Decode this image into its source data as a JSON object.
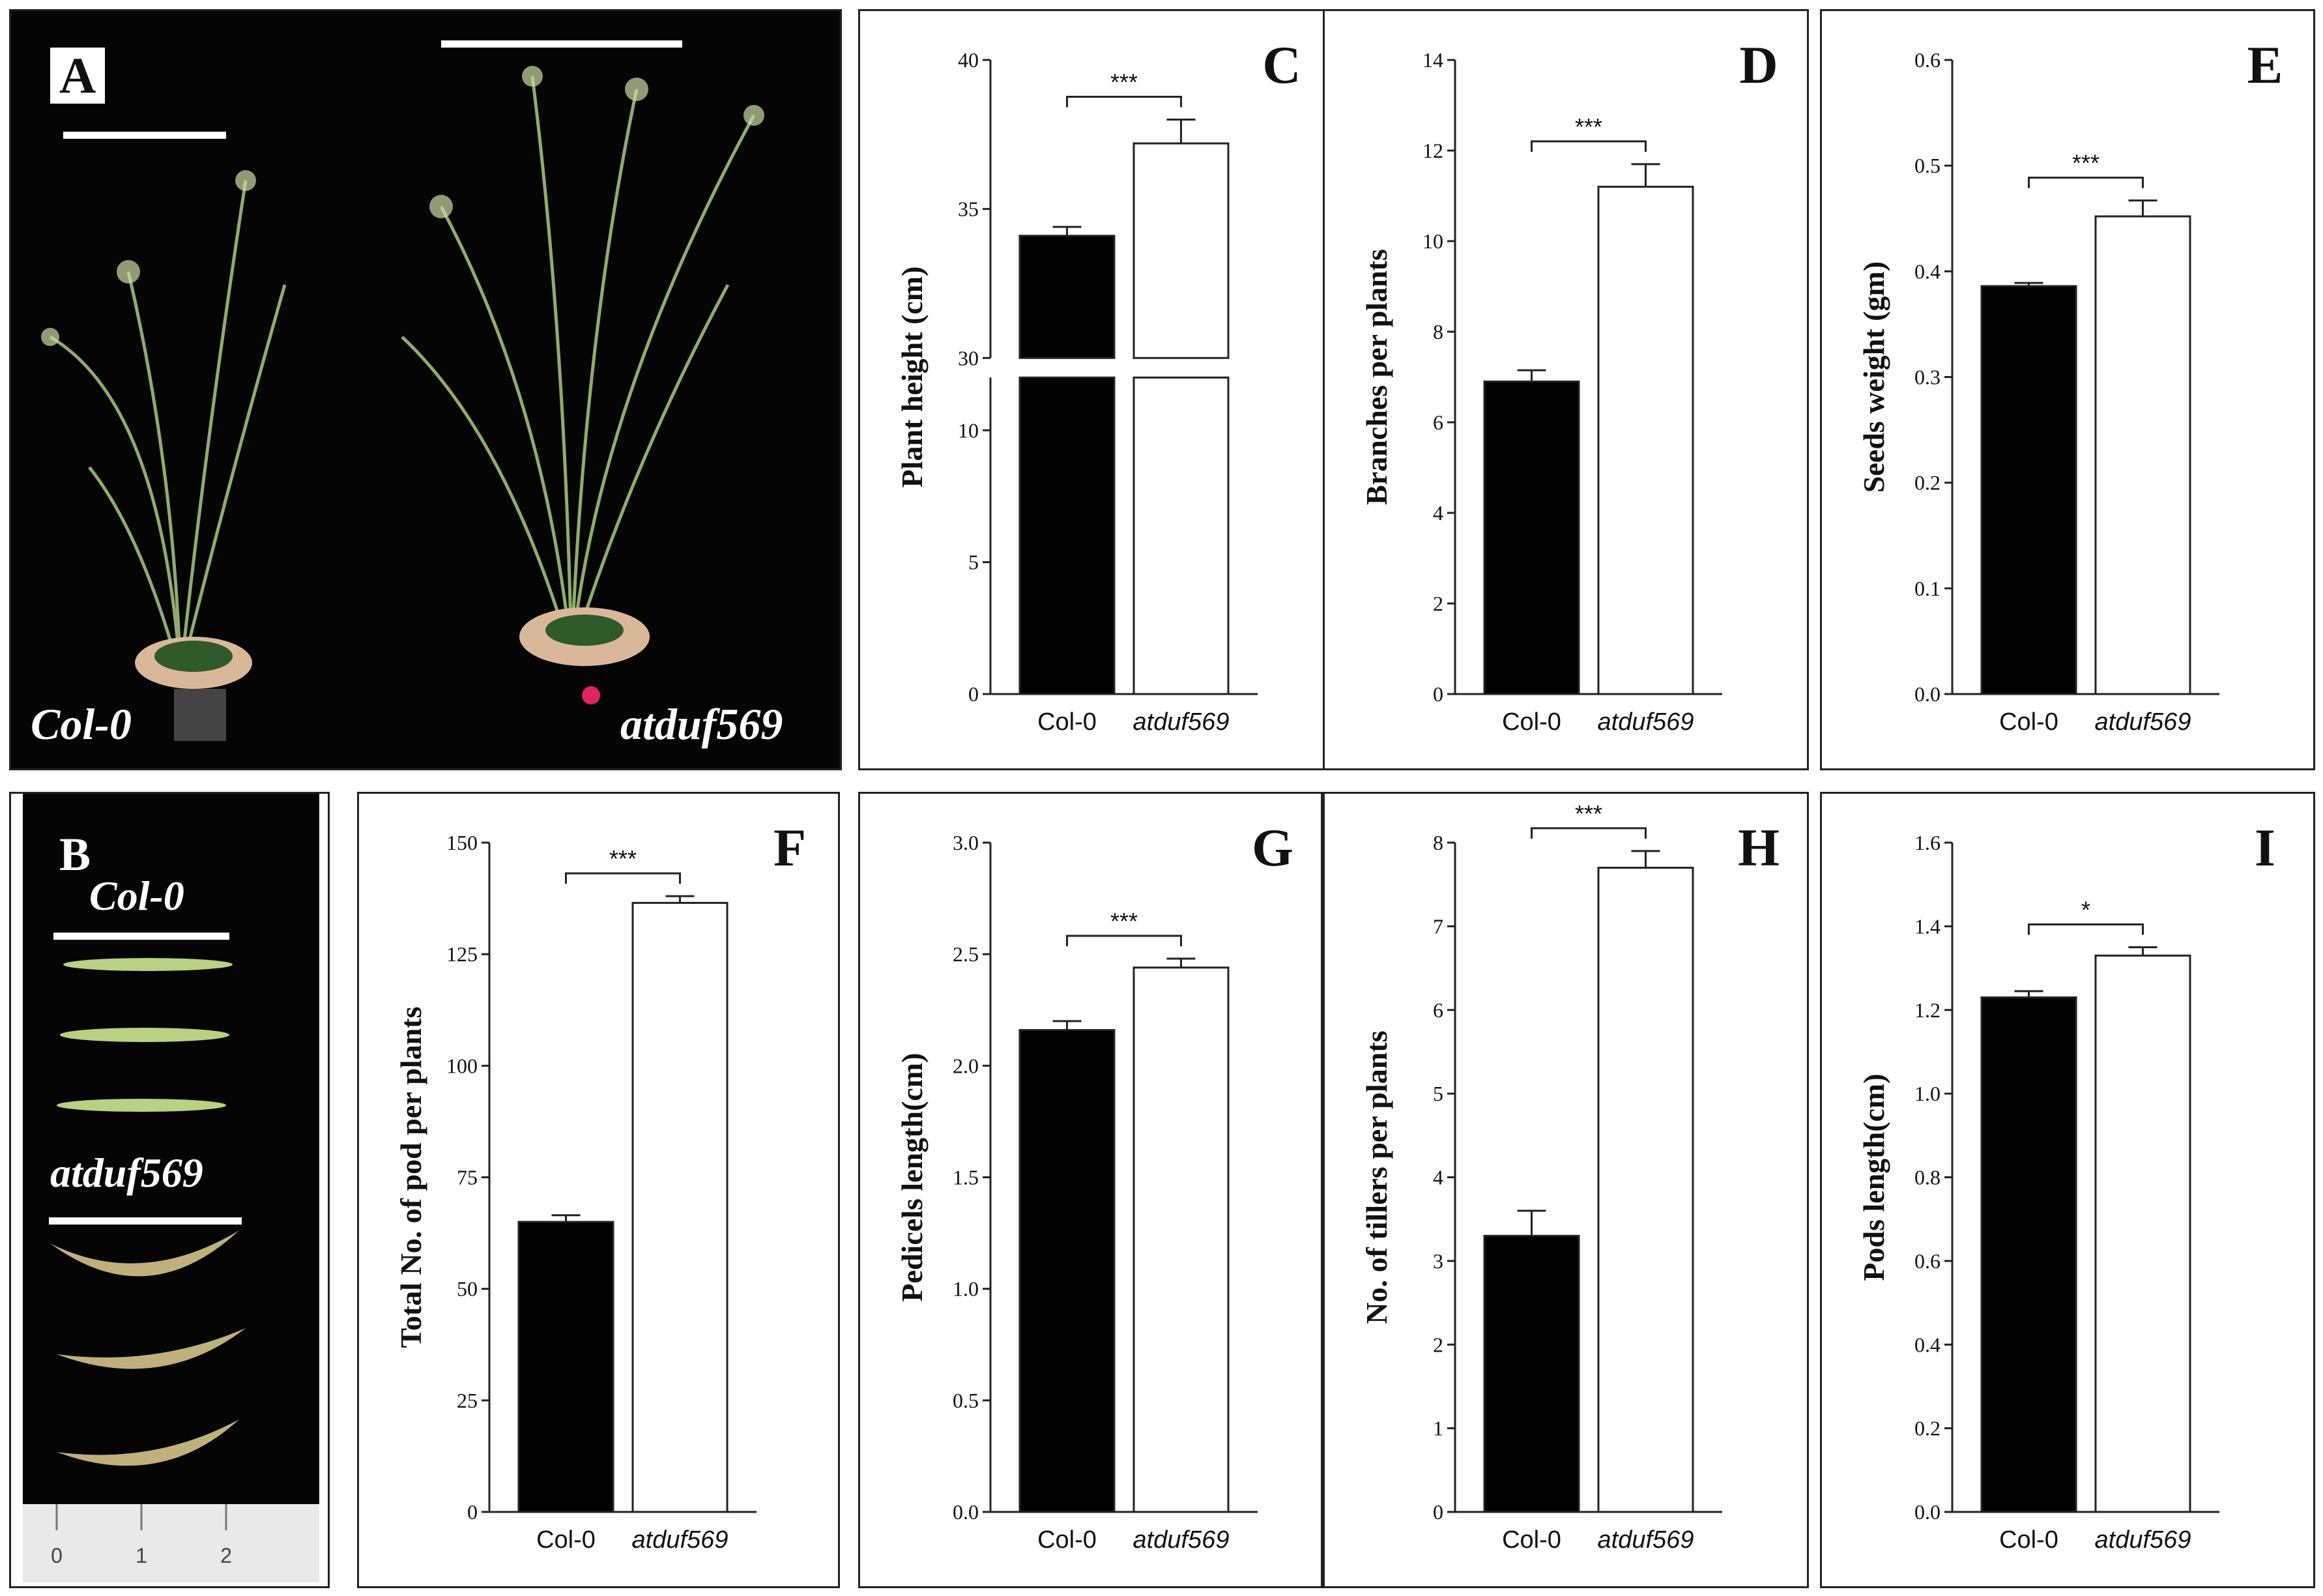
{
  "photos": {
    "A": {
      "letter": "A",
      "labels": [
        "Col-0",
        "atduf569"
      ]
    },
    "B": {
      "letter": "B",
      "labels": [
        "Col-0",
        "atduf569"
      ],
      "ruler_ticks": [
        "0",
        "1",
        "2"
      ]
    }
  },
  "colors": {
    "col0_bar": "#000000",
    "mutant_bar": "#ffffff",
    "axis": "#222222"
  },
  "chart_data": [
    {
      "id": "C",
      "letter": "C",
      "type": "bar",
      "categories": [
        "Col-0",
        "atduf569"
      ],
      "values": [
        34.1,
        37.2
      ],
      "errors": [
        0.3,
        0.8
      ],
      "ylabel": "Plant height (cm)",
      "ylim": [
        0,
        40
      ],
      "broken_axis": {
        "lower": [
          0,
          12
        ],
        "upper": [
          30,
          40
        ]
      },
      "ticks": [
        "0",
        "5",
        "10",
        "30",
        "35",
        "40"
      ],
      "significance": "***"
    },
    {
      "id": "D",
      "letter": "D",
      "type": "bar",
      "categories": [
        "Col-0",
        "atduf569"
      ],
      "values": [
        6.9,
        11.2
      ],
      "errors": [
        0.25,
        0.5
      ],
      "ylabel": "Branches per plants",
      "ylim": [
        0,
        14
      ],
      "ticks": [
        "0",
        "2",
        "4",
        "6",
        "8",
        "10",
        "12",
        "14"
      ],
      "significance": "***"
    },
    {
      "id": "E",
      "letter": "E",
      "type": "bar",
      "categories": [
        "Col-0",
        "atduf569"
      ],
      "values": [
        0.386,
        0.452
      ],
      "errors": [
        0.003,
        0.015
      ],
      "ylabel": "Seeds weight (gm)",
      "ylim": [
        0,
        0.6
      ],
      "ticks": [
        "0.0",
        "0.1",
        "0.2",
        "0.3",
        "0.4",
        "0.5",
        "0.6"
      ],
      "significance": "***"
    },
    {
      "id": "F",
      "letter": "F",
      "type": "bar",
      "categories": [
        "Col-0",
        "atduf569"
      ],
      "values": [
        65,
        136.5
      ],
      "errors": [
        1.5,
        1.5
      ],
      "ylabel": "Total No. of pod per plants",
      "ylim": [
        0,
        150
      ],
      "ticks": [
        "0",
        "25",
        "50",
        "75",
        "100",
        "125",
        "150"
      ],
      "significance": "***"
    },
    {
      "id": "G",
      "letter": "G",
      "type": "bar",
      "categories": [
        "Col-0",
        "atduf569"
      ],
      "values": [
        2.16,
        2.44
      ],
      "errors": [
        0.04,
        0.04
      ],
      "ylabel": "Pedicels length(cm)",
      "ylim": [
        0,
        3.0
      ],
      "ticks": [
        "0.0",
        "0.5",
        "1.0",
        "1.5",
        "2.0",
        "2.5",
        "3.0"
      ],
      "significance": "***"
    },
    {
      "id": "H",
      "letter": "H",
      "type": "bar",
      "categories": [
        "Col-0",
        "atduf569"
      ],
      "values": [
        3.3,
        7.7
      ],
      "errors": [
        0.3,
        0.2
      ],
      "ylabel": "No. of tillers per plants",
      "ylim": [
        0,
        8
      ],
      "ticks": [
        "0",
        "1",
        "2",
        "3",
        "4",
        "5",
        "6",
        "7",
        "8"
      ],
      "significance": "***"
    },
    {
      "id": "I",
      "letter": "I",
      "type": "bar",
      "categories": [
        "Col-0",
        "atduf569"
      ],
      "values": [
        1.23,
        1.33
      ],
      "errors": [
        0.015,
        0.02
      ],
      "ylabel": "Pods length(cm)",
      "ylim": [
        0,
        1.6
      ],
      "ticks": [
        "0.0",
        "0.2",
        "0.4",
        "0.6",
        "0.8",
        "1.0",
        "1.2",
        "1.4",
        "1.6"
      ],
      "significance": "*"
    }
  ]
}
